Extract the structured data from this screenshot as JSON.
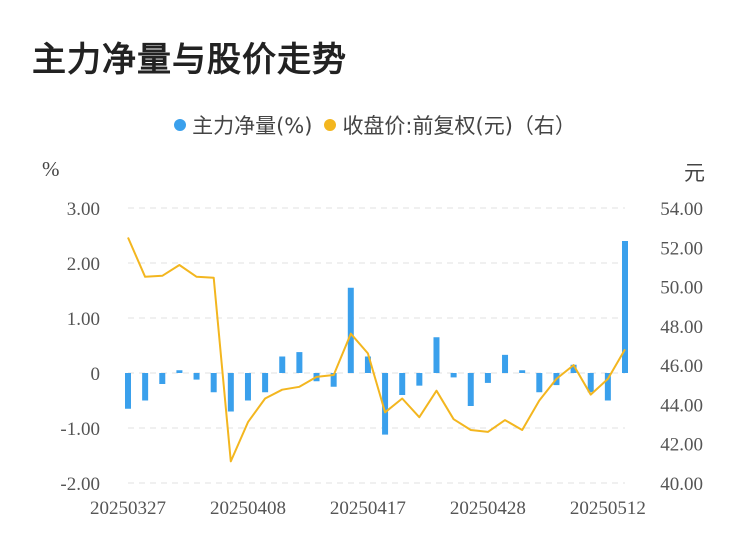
{
  "title": "主力净量与股价走势",
  "legend": {
    "series1": "主力净量(%)",
    "series2": "收盘价:前复权(元)（右）"
  },
  "units": {
    "left": "%",
    "right": "元"
  },
  "colors": {
    "bar": "#3aa0ec",
    "line": "#f3b61f",
    "grid": "#e0e0e0"
  },
  "chart_data": {
    "type": "bar+line",
    "title": "主力净量与股价走势",
    "x_ticks": [
      "20250327",
      "20250408",
      "20250417",
      "20250428",
      "20250512"
    ],
    "x_tick_index": [
      0,
      7,
      14,
      21,
      28
    ],
    "dates_count": 30,
    "y_left": {
      "min": -2.0,
      "max": 3.0,
      "ticks": [
        "3.00",
        "2.00",
        "1.00",
        "0",
        "-1.00",
        "-2.00"
      ],
      "tick_values": [
        3,
        2,
        1,
        0,
        -1,
        -2
      ]
    },
    "y_right": {
      "min": 40.0,
      "max": 54.0,
      "ticks": [
        "54.00",
        "52.00",
        "50.00",
        "48.00",
        "46.00",
        "44.00",
        "42.00",
        "40.00"
      ],
      "tick_values": [
        54,
        52,
        50,
        48,
        46,
        44,
        42,
        40
      ]
    },
    "series": [
      {
        "name": "主力净量(%)",
        "type": "bar",
        "axis": "left",
        "values": [
          -0.65,
          -0.5,
          -0.2,
          0.05,
          -0.12,
          -0.35,
          -0.7,
          -0.5,
          -0.35,
          0.3,
          0.38,
          -0.15,
          -0.25,
          1.55,
          0.3,
          -1.12,
          -0.4,
          -0.23,
          0.65,
          -0.08,
          -0.6,
          -0.18,
          0.33,
          0.05,
          -0.35,
          -0.22,
          0.15,
          -0.35,
          -0.5,
          2.4
        ]
      },
      {
        "name": "收盘价:前复权(元)（右）",
        "type": "line",
        "axis": "right",
        "values": [
          52.5,
          50.5,
          50.55,
          51.1,
          50.5,
          50.45,
          41.1,
          43.1,
          44.3,
          44.75,
          44.9,
          45.4,
          45.5,
          47.6,
          46.6,
          43.6,
          44.3,
          43.35,
          44.7,
          43.25,
          42.7,
          42.6,
          43.2,
          42.7,
          44.2,
          45.3,
          46.0,
          44.5,
          45.3,
          46.8
        ]
      }
    ]
  }
}
